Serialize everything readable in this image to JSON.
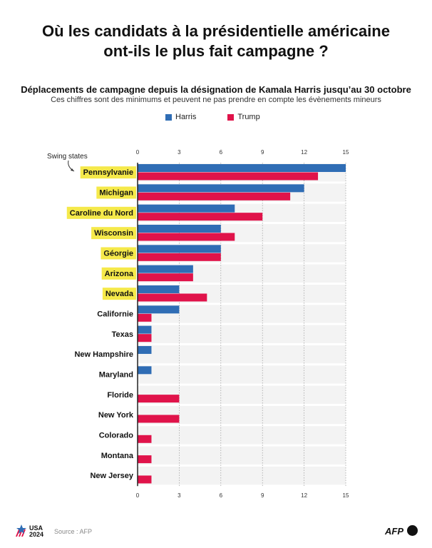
{
  "title_line1": "Où les candidats à la présidentielle américaine",
  "title_line2": "ont-ils le plus fait campagne ?",
  "chart_data": {
    "type": "bar",
    "orientation": "horizontal",
    "title": "Déplacements de campagne depuis la désignation de Kamala Harris jusqu’au 30 octobre",
    "subtitle": "Ces chiffres sont des minimums et peuvent ne pas prendre en compte les évènements mineurs",
    "annotation": "Swing states",
    "categories": [
      "Pennsylvanie",
      "Michigan",
      "Caroline du Nord",
      "Wisconsin",
      "Géorgie",
      "Arizona",
      "Nevada",
      "Californie",
      "Texas",
      "New Hampshire",
      "Maryland",
      "Floride",
      "New York",
      "Colorado",
      "Montana",
      "New Jersey"
    ],
    "swing_states": [
      true,
      true,
      true,
      true,
      true,
      true,
      true,
      false,
      false,
      false,
      false,
      false,
      false,
      false,
      false,
      false
    ],
    "series": [
      {
        "name": "Harris",
        "color": "#2f6db5",
        "values": [
          15,
          12,
          7,
          6,
          6,
          4,
          3,
          3,
          1,
          1,
          1,
          0,
          0,
          0,
          0,
          0
        ]
      },
      {
        "name": "Trump",
        "color": "#e0134a",
        "values": [
          13,
          11,
          9,
          7,
          6,
          4,
          5,
          1,
          1,
          0,
          0,
          3,
          3,
          1,
          1,
          1
        ]
      }
    ],
    "xticks": [
      "0",
      "3",
      "6",
      "9",
      "12",
      "15"
    ],
    "xlim": [
      0,
      15
    ],
    "grid": true,
    "legend": "top"
  },
  "footer": {
    "source": "Source : AFP",
    "logo_usa": "USA",
    "logo_year": "2024",
    "logo_afp": "AFP"
  }
}
